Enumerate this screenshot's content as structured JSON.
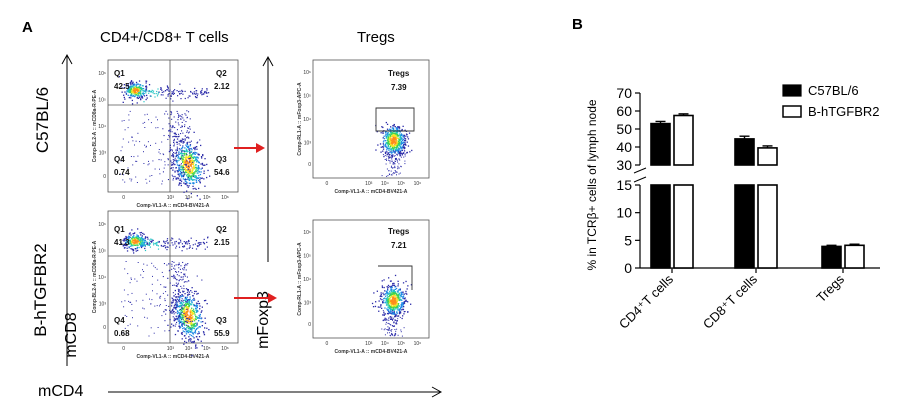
{
  "panel_a": {
    "label": "A",
    "col1_title": "CD4+/CD8+ T cells",
    "col2_title": "Tregs",
    "row1_label": "C57BL/6",
    "row2_label": "B-hTGFBR2",
    "y_axis_cd8": "mCD8",
    "y_axis_foxp3": "mFoxp3",
    "x_axis_cd4": "mCD4",
    "plot_xlabel": "Comp-VL1-A :: mCD4-BV421-A",
    "plot_ylabel_cd8": "Comp-BL2-A :: mCD8a-R-PE-A",
    "plot_ylabel_foxp3": "Comp-RL1-A :: mFoxp3-APC-A",
    "x_ticks": [
      "0",
      "10³",
      "10⁴",
      "10⁵",
      "10⁶"
    ],
    "y_ticks": [
      "10⁶",
      "10⁵",
      "10⁴",
      "10³",
      "0"
    ],
    "row1_quadrants": {
      "q1": "Q1",
      "q1v": "42.5",
      "q2": "Q2",
      "q2v": "2.12",
      "q3": "Q3",
      "q3v": "54.6",
      "q4": "Q4",
      "q4v": "0.74"
    },
    "row2_quadrants": {
      "q1": "Q1",
      "q1v": "41.3",
      "q2": "Q2",
      "q2v": "2.15",
      "q3": "Q3",
      "q3v": "55.9",
      "q4": "Q4",
      "q4v": "0.68"
    },
    "row1_treg": {
      "label": "Tregs",
      "value": "7.39"
    },
    "row2_treg": {
      "label": "Tregs",
      "value": "7.21"
    },
    "arrow_color": "#e02020"
  },
  "panel_b": {
    "label": "B",
    "ylabel": "% in TCRβ+ cells of lymph node",
    "legend": [
      "C57BL/6",
      "B-hTGFBR2"
    ],
    "series_colors": [
      "#000000",
      "#ffffff"
    ]
  },
  "chart_data": {
    "type": "bar",
    "title": "",
    "xlabel": "",
    "ylabel": "% in TCRβ+ cells of lymph node",
    "categories": [
      "CD4⁺T cells",
      "CD8⁺T cells",
      "Tregs"
    ],
    "series": [
      {
        "name": "C57BL/6",
        "values": [
          53,
          44.5,
          3.9
        ],
        "errors": [
          1.2,
          1.5,
          0.2
        ]
      },
      {
        "name": "B-hTGFBR2",
        "values": [
          57.5,
          39.5,
          4.1
        ],
        "errors": [
          0.9,
          1.1,
          0.2
        ]
      }
    ],
    "y_axis_broken": true,
    "ylim_lower": [
      0,
      15
    ],
    "ylim_upper": [
      30,
      70
    ],
    "yticks_lower": [
      "0",
      "5",
      "10",
      "15"
    ],
    "yticks_upper": [
      "30",
      "40",
      "50",
      "60",
      "70"
    ],
    "legend_position": "top-right",
    "grid": false
  }
}
